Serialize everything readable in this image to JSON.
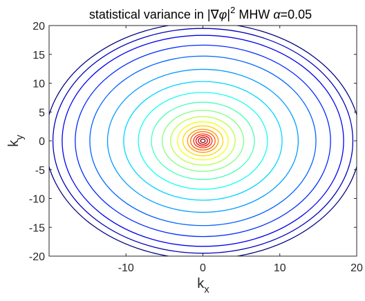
{
  "chart_data": {
    "type": "contour",
    "title": {
      "prefix": "statistical variance in |",
      "nabla": "∇",
      "phi": "φ",
      "bar": "|",
      "exponent": "2",
      "suffix": "  MHW ",
      "alpha": "α",
      "value": "=0.05"
    },
    "xlabel": {
      "base": "k",
      "sub": "x"
    },
    "ylabel": {
      "base": "k",
      "sub": "y"
    },
    "xlim": [
      -20,
      20
    ],
    "ylim": [
      -20,
      20
    ],
    "x_ticks": [
      -10,
      0,
      10,
      20
    ],
    "x_tick_labels": [
      "-10",
      "0",
      "10",
      "20"
    ],
    "y_ticks": [
      20,
      15,
      10,
      5,
      0,
      -5,
      -10,
      -15,
      -20
    ],
    "y_tick_labels": [
      "20",
      "15",
      "10",
      "5",
      "0",
      "-5",
      "-10",
      "-15",
      "-20"
    ],
    "center": [
      0,
      0
    ],
    "contour_radii": [
      0.3,
      0.6,
      0.9,
      1.2,
      1.6,
      2.0,
      2.6,
      3.3,
      4.2,
      5.3,
      6.7,
      8.4,
      10.3,
      12.4,
      14.7,
      16.6,
      18.3,
      19.5,
      20.5
    ],
    "colormap": "jet",
    "grid": false,
    "legend": "none"
  },
  "colors": {
    "axis": "#262626",
    "background": "#ffffff"
  }
}
